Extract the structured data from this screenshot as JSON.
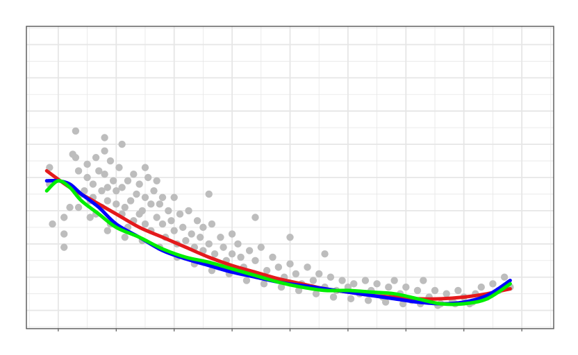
{
  "chart_data": {
    "type": "scatter",
    "title": "",
    "xlabel": "",
    "ylabel": "",
    "xlim": [
      0,
      8
    ],
    "ylim": [
      0,
      8
    ],
    "grid": true,
    "colors": {
      "points": "#bdbdbd",
      "grid": "#e6e6e6",
      "border": "#555555",
      "panel": "#ffffff"
    },
    "points": [
      [
        0.1,
        1.9
      ],
      [
        -0.15,
        4.3
      ],
      [
        -0.15,
        3.8
      ],
      [
        -0.1,
        2.6
      ],
      [
        0.1,
        2.3
      ],
      [
        0.1,
        2.8
      ],
      [
        0.2,
        3.1
      ],
      [
        0.25,
        4.7
      ],
      [
        0.3,
        4.6
      ],
      [
        0.35,
        4.2
      ],
      [
        0.4,
        3.5
      ],
      [
        0.45,
        3.6
      ],
      [
        0.5,
        4.4
      ],
      [
        0.5,
        4.0
      ],
      [
        0.55,
        3.3
      ],
      [
        0.6,
        3.8
      ],
      [
        0.6,
        3.4
      ],
      [
        0.65,
        2.9
      ],
      [
        0.65,
        4.6
      ],
      [
        0.7,
        4.2
      ],
      [
        0.75,
        3.6
      ],
      [
        0.75,
        3.1
      ],
      [
        0.8,
        4.8
      ],
      [
        0.8,
        4.1
      ],
      [
        0.85,
        3.7
      ],
      [
        0.85,
        3.3
      ],
      [
        0.9,
        2.6
      ],
      [
        0.9,
        4.5
      ],
      [
        0.95,
        3.9
      ],
      [
        1.0,
        3.2
      ],
      [
        1.0,
        3.6
      ],
      [
        1.05,
        4.3
      ],
      [
        1.1,
        2.9
      ],
      [
        1.1,
        3.7
      ],
      [
        1.15,
        3.1
      ],
      [
        1.2,
        3.9
      ],
      [
        1.2,
        2.5
      ],
      [
        1.25,
        3.3
      ],
      [
        1.3,
        4.1
      ],
      [
        1.3,
        2.7
      ],
      [
        1.35,
        3.5
      ],
      [
        1.4,
        2.9
      ],
      [
        1.4,
        3.8
      ],
      [
        1.45,
        3.0
      ],
      [
        1.5,
        3.4
      ],
      [
        1.5,
        2.6
      ],
      [
        1.55,
        4.0
      ],
      [
        1.6,
        3.2
      ],
      [
        1.6,
        2.4
      ],
      [
        1.65,
        3.6
      ],
      [
        1.7,
        2.8
      ],
      [
        1.7,
        3.9
      ],
      [
        1.75,
        3.2
      ],
      [
        1.8,
        2.6
      ],
      [
        1.8,
        3.4
      ],
      [
        1.85,
        2.2
      ],
      [
        1.9,
        3.0
      ],
      [
        1.95,
        2.7
      ],
      [
        2.0,
        3.4
      ],
      [
        2.0,
        2.4
      ],
      [
        2.05,
        2.0
      ],
      [
        2.1,
        2.9
      ],
      [
        2.15,
        2.5
      ],
      [
        2.2,
        2.1
      ],
      [
        2.25,
        3.0
      ],
      [
        2.3,
        2.3
      ],
      [
        2.35,
        1.9
      ],
      [
        2.4,
        2.7
      ],
      [
        2.45,
        2.2
      ],
      [
        2.5,
        1.8
      ],
      [
        2.5,
        2.5
      ],
      [
        2.6,
        2.0
      ],
      [
        2.65,
        2.6
      ],
      [
        2.7,
        1.7
      ],
      [
        2.8,
        2.2
      ],
      [
        2.85,
        1.9
      ],
      [
        2.9,
        1.5
      ],
      [
        3.0,
        2.3
      ],
      [
        3.0,
        1.7
      ],
      [
        3.1,
        2.0
      ],
      [
        3.15,
        1.6
      ],
      [
        3.2,
        1.3
      ],
      [
        3.3,
        1.8
      ],
      [
        3.4,
        1.5
      ],
      [
        3.5,
        1.9
      ],
      [
        3.6,
        1.2
      ],
      [
        3.7,
        1.6
      ],
      [
        3.8,
        1.3
      ],
      [
        3.9,
        1.0
      ],
      [
        4.0,
        1.4
      ],
      [
        4.1,
        1.1
      ],
      [
        4.2,
        0.8
      ],
      [
        4.3,
        1.3
      ],
      [
        4.4,
        0.9
      ],
      [
        4.5,
        1.1
      ],
      [
        4.6,
        0.7
      ],
      [
        4.7,
        1.0
      ],
      [
        4.8,
        0.6
      ],
      [
        4.9,
        0.9
      ],
      [
        5.0,
        0.7
      ],
      [
        5.1,
        0.8
      ],
      [
        5.2,
        0.5
      ],
      [
        5.3,
        0.9
      ],
      [
        5.4,
        0.6
      ],
      [
        5.5,
        0.8
      ],
      [
        5.6,
        0.4
      ],
      [
        5.7,
        0.7
      ],
      [
        5.8,
        0.9
      ],
      [
        5.9,
        0.5
      ],
      [
        6.0,
        0.7
      ],
      [
        6.1,
        0.3
      ],
      [
        6.2,
        0.6
      ],
      [
        6.3,
        0.9
      ],
      [
        6.4,
        0.4
      ],
      [
        6.5,
        0.6
      ],
      [
        6.6,
        0.2
      ],
      [
        6.7,
        0.5
      ],
      [
        6.8,
        0.3
      ],
      [
        6.9,
        0.6
      ],
      [
        7.0,
        0.4
      ],
      [
        7.1,
        0.2
      ],
      [
        7.2,
        0.5
      ],
      [
        7.3,
        0.7
      ],
      [
        7.4,
        0.4
      ],
      [
        7.5,
        0.8
      ],
      [
        7.6,
        0.6
      ],
      [
        7.7,
        1.0
      ],
      [
        7.8,
        0.7
      ],
      [
        0.35,
        3.1
      ],
      [
        0.55,
        2.8
      ],
      [
        0.85,
        2.4
      ],
      [
        1.15,
        2.2
      ],
      [
        1.45,
        2.1
      ],
      [
        1.75,
        1.9
      ],
      [
        2.05,
        1.6
      ],
      [
        2.35,
        1.4
      ],
      [
        2.65,
        1.2
      ],
      [
        2.95,
        1.1
      ],
      [
        3.25,
        0.9
      ],
      [
        3.55,
        0.8
      ],
      [
        3.85,
        0.7
      ],
      [
        4.15,
        0.6
      ],
      [
        4.45,
        0.5
      ],
      [
        4.75,
        0.4
      ],
      [
        5.05,
        0.35
      ],
      [
        5.35,
        0.3
      ],
      [
        5.65,
        0.25
      ],
      [
        5.95,
        0.2
      ],
      [
        6.25,
        0.2
      ],
      [
        6.55,
        0.15
      ],
      [
        6.85,
        0.2
      ],
      [
        7.15,
        0.25
      ],
      [
        0.8,
        5.2
      ],
      [
        1.1,
        5.0
      ],
      [
        0.3,
        5.4
      ],
      [
        1.5,
        4.3
      ],
      [
        2.6,
        3.5
      ],
      [
        3.4,
        2.8
      ],
      [
        4.0,
        2.2
      ],
      [
        4.6,
        1.7
      ]
    ],
    "series": [
      {
        "color": "#e41a1c",
        "x": [
          -0.2,
          0.2,
          0.6,
          1.0,
          1.4,
          1.8,
          2.2,
          2.6,
          3.0,
          3.4,
          3.8,
          4.2,
          4.6,
          5.0,
          5.4,
          5.8,
          6.2,
          6.6,
          7.0,
          7.4,
          7.8
        ],
        "y": [
          4.2,
          3.7,
          3.3,
          2.9,
          2.5,
          2.2,
          1.9,
          1.6,
          1.35,
          1.15,
          0.95,
          0.8,
          0.65,
          0.55,
          0.45,
          0.4,
          0.35,
          0.35,
          0.4,
          0.5,
          0.65
        ]
      },
      {
        "color": "#0000ff",
        "x": [
          -0.2,
          0.0,
          0.2,
          0.4,
          0.7,
          1.0,
          1.4,
          1.8,
          2.2,
          2.6,
          3.0,
          3.4,
          3.8,
          4.2,
          4.6,
          5.0,
          5.4,
          5.8,
          6.2,
          6.6,
          7.0,
          7.4,
          7.8
        ],
        "y": [
          3.9,
          3.9,
          3.8,
          3.5,
          3.1,
          2.6,
          2.2,
          1.8,
          1.55,
          1.35,
          1.15,
          1.0,
          0.85,
          0.75,
          0.65,
          0.55,
          0.45,
          0.35,
          0.25,
          0.2,
          0.25,
          0.45,
          0.9
        ]
      },
      {
        "color": "#00ee00",
        "x": [
          -0.2,
          0.0,
          0.2,
          0.4,
          0.7,
          1.0,
          1.4,
          1.8,
          2.2,
          2.6,
          3.0,
          3.4,
          3.8,
          4.2,
          4.6,
          5.0,
          5.4,
          5.8,
          6.2,
          6.6,
          7.0,
          7.4,
          7.8
        ],
        "y": [
          3.6,
          3.9,
          3.7,
          3.3,
          2.9,
          2.5,
          2.2,
          1.85,
          1.6,
          1.45,
          1.25,
          1.05,
          0.85,
          0.7,
          0.6,
          0.6,
          0.55,
          0.5,
          0.35,
          0.2,
          0.2,
          0.35,
          0.8
        ]
      }
    ]
  }
}
